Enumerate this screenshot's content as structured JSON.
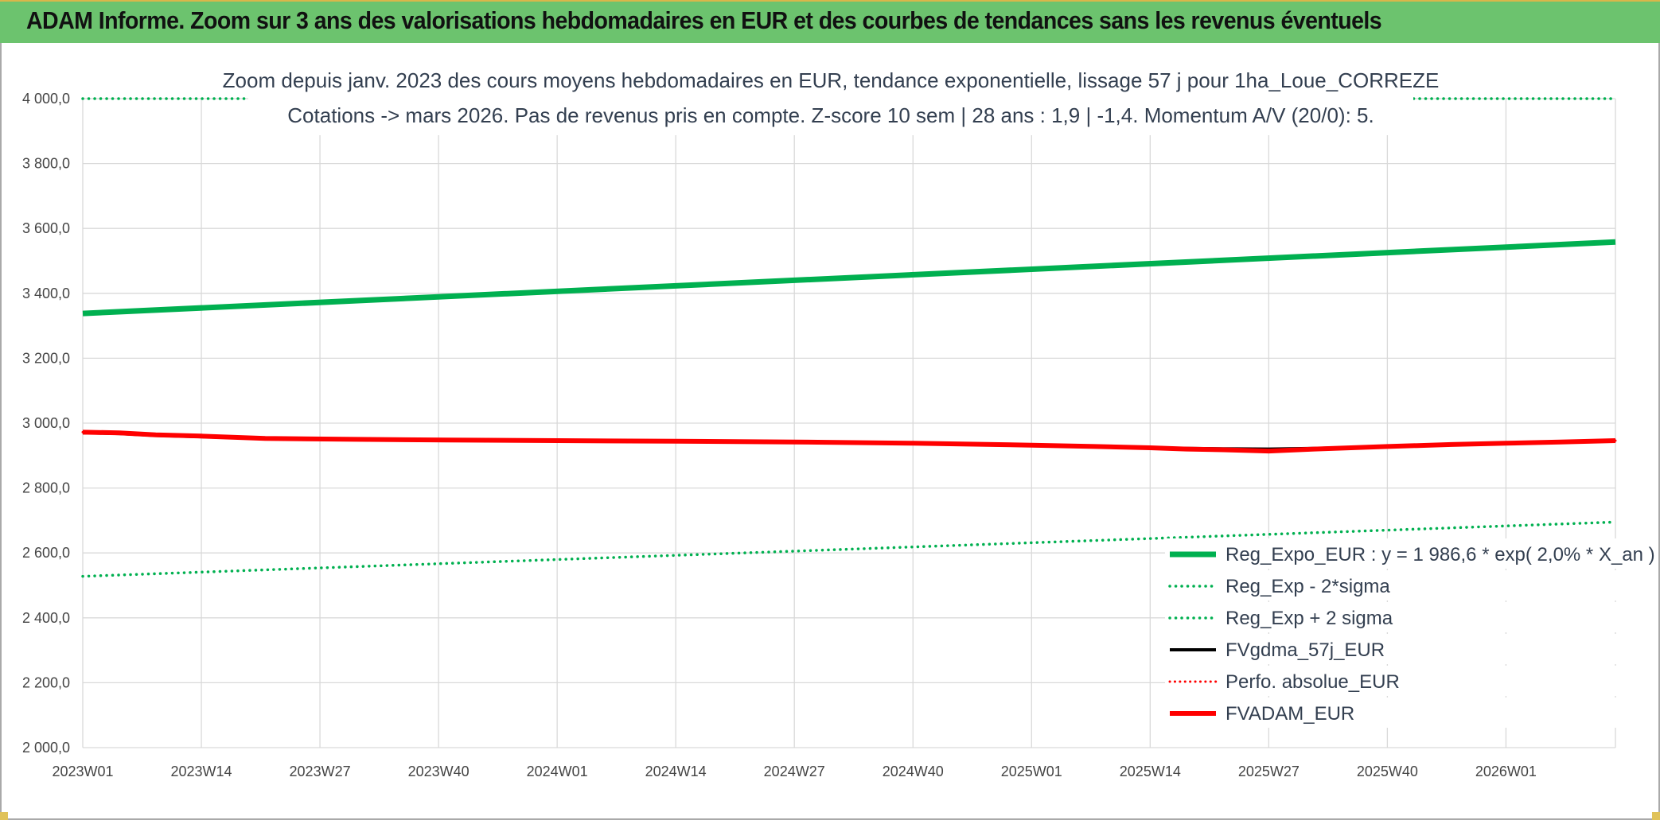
{
  "banner": {
    "title": "ADAM Informe. Zoom sur 3 ans des valorisations hebdomadaires en EUR et des courbes de tendances sans les revenus éventuels",
    "background": "#6cc36e"
  },
  "chart_data": {
    "type": "line",
    "title_lines": [
      "Zoom depuis janv. 2023 des cours moyens hebdomadaires en EUR, tendance exponentielle, lissage 57 j pour 1ha_Loue_CORREZE",
      "Cotations -> mars 2026. Pas de revenus pris en compte. Z-score 10 sem | 28 ans : 1,9 | -1,4. Momentum A/V (20/0): 5."
    ],
    "ylim": [
      2000,
      4000
    ],
    "yticks": [
      4000,
      3800,
      3600,
      3400,
      3200,
      3000,
      2800,
      2600,
      2400,
      2200,
      2000
    ],
    "ytick_labels": [
      "4 000,0",
      "3 800,0",
      "3 600,0",
      "3 400,0",
      "3 200,0",
      "3 000,0",
      "2 800,0",
      "2 600,0",
      "2 400,0",
      "2 200,0",
      "2 000,0"
    ],
    "x_start_week": 0,
    "x_end_week": 168,
    "xtick_labels": [
      "2023W01",
      "2023W14",
      "2023W27",
      "2023W40",
      "2024W01",
      "2024W14",
      "2024W27",
      "2024W40",
      "2025W01",
      "2025W14",
      "2025W27",
      "2025W40",
      "2026W01"
    ],
    "grid": true,
    "legend_position": "bottom-right",
    "series": [
      {
        "name": "Reg_Expo_EUR : y = 1 986,6 * exp( 2,0% *  X_an )",
        "color": "#00b050",
        "style": "solid",
        "width": 7,
        "x": [
          0,
          168
        ],
        "values": [
          3338,
          3558
        ]
      },
      {
        "name": "Reg_Exp - 2*sigma",
        "color": "#00b050",
        "style": "dotted",
        "width": 3.5,
        "x": [
          0,
          168
        ],
        "values": [
          2528,
          2695
        ]
      },
      {
        "name": "Reg_Exp + 2 sigma",
        "color": "#00b050",
        "style": "dotted",
        "width": 3.5,
        "x": [
          0,
          168
        ],
        "values": [
          4000,
          4000
        ]
      },
      {
        "name": "FVgdma_57j_EUR",
        "color": "#000000",
        "style": "solid",
        "width": 4,
        "x": [
          0,
          4,
          8,
          13,
          20,
          30,
          40,
          52,
          65,
          78,
          91,
          104,
          111,
          117,
          121,
          125,
          130,
          135,
          143,
          150,
          156,
          162,
          168
        ],
        "values": [
          2970,
          2968,
          2962,
          2958,
          2952,
          2950,
          2948,
          2946,
          2945,
          2942,
          2938,
          2932,
          2928,
          2924,
          2922,
          2921,
          2920,
          2922,
          2928,
          2934,
          2938,
          2942,
          2946
        ]
      },
      {
        "name": "Perfo. absolue_EUR",
        "color": "#ff0000",
        "style": "dotted",
        "width": 3,
        "x": [
          0,
          4,
          8,
          13,
          20,
          30,
          40,
          52,
          65,
          78,
          91,
          104,
          111,
          117,
          121,
          125,
          130,
          135,
          143,
          150,
          156,
          162,
          168
        ],
        "values": [
          2972,
          2970,
          2964,
          2960,
          2953,
          2950,
          2948,
          2946,
          2944,
          2942,
          2938,
          2932,
          2928,
          2924,
          2920,
          2918,
          2914,
          2920,
          2928,
          2934,
          2938,
          2942,
          2946
        ]
      },
      {
        "name": "FVADAM_EUR",
        "color": "#ff0000",
        "style": "solid",
        "width": 6,
        "x": [
          0,
          4,
          8,
          13,
          20,
          30,
          40,
          52,
          65,
          78,
          91,
          104,
          111,
          117,
          121,
          125,
          130,
          135,
          143,
          150,
          156,
          162,
          168
        ],
        "values": [
          2972,
          2970,
          2964,
          2960,
          2953,
          2950,
          2948,
          2946,
          2944,
          2942,
          2938,
          2932,
          2928,
          2924,
          2920,
          2918,
          2914,
          2920,
          2928,
          2934,
          2938,
          2942,
          2946
        ]
      }
    ]
  }
}
